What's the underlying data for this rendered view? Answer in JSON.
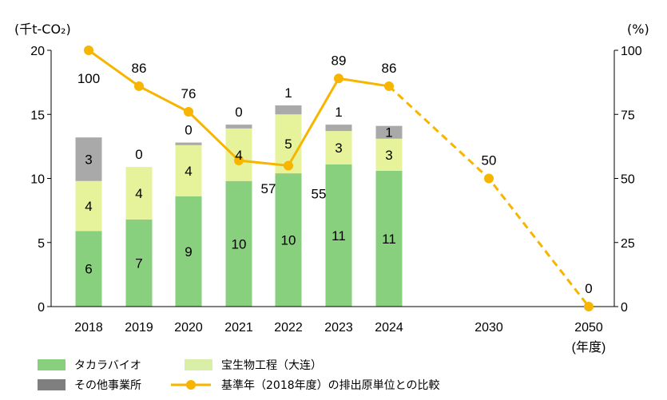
{
  "chart_data": {
    "type": "bar",
    "stacked": true,
    "categories": [
      "2018",
      "2019",
      "2020",
      "2021",
      "2022",
      "2023",
      "2024",
      "2030",
      "2050"
    ],
    "x_unit_label": "(年度)",
    "left_axis": {
      "unit_label": "(千t-CO₂)",
      "ylim": [
        0,
        20
      ],
      "ticks": [
        0,
        5,
        10,
        15,
        20
      ]
    },
    "right_axis": {
      "unit_label": "(%)",
      "ylim": [
        0,
        100
      ],
      "ticks": [
        0,
        25,
        50,
        75,
        100
      ]
    },
    "series": [
      {
        "name": "タカラバイオ",
        "color": "#88d07e",
        "axis": "left",
        "values": [
          5.9,
          6.8,
          8.6,
          9.8,
          10.4,
          11.1,
          10.6,
          null,
          null
        ],
        "labels": [
          "6",
          "7",
          "9",
          "10",
          "10",
          "11",
          "11",
          "",
          ""
        ]
      },
      {
        "name": "宝生物工程（大连）",
        "color": "#e6f39b",
        "axis": "left",
        "values": [
          3.9,
          4.1,
          4.0,
          4.1,
          4.6,
          2.6,
          2.5,
          null,
          null
        ],
        "labels": [
          "4",
          "4",
          "4",
          "4",
          "5",
          "3",
          "3",
          "",
          ""
        ]
      },
      {
        "name": "その他事業所",
        "color": "#a9a9a9",
        "axis": "left",
        "values": [
          3.4,
          0.0,
          0.2,
          0.3,
          0.7,
          0.5,
          1.0,
          null,
          null
        ],
        "labels": [
          "3",
          "0",
          "0",
          "0",
          "1",
          "1",
          "1",
          "",
          ""
        ]
      },
      {
        "name": "基準年（2018年度）の排出原単位との比較",
        "type": "line",
        "color": "#f7b500",
        "axis": "right",
        "values": [
          100,
          86,
          76,
          57,
          55,
          89,
          86,
          50,
          0
        ],
        "labels": [
          "100",
          "86",
          "76",
          "57",
          "55",
          "89",
          "86",
          "50",
          "0"
        ],
        "dashed_from_index": 6
      }
    ],
    "legend": {
      "position": "bottom",
      "items": [
        {
          "label": "タカラバイオ",
          "color": "#88d07e",
          "swatch": "bar"
        },
        {
          "label": "宝生物工程（大连）",
          "color": "#d9efa7",
          "swatch": "bar"
        },
        {
          "label": "その他事業所",
          "color": "#7f7f7f",
          "swatch": "bar"
        },
        {
          "label": "基準年（2018年度）の排出原単位との比較",
          "color": "#f7b500",
          "swatch": "line"
        }
      ]
    },
    "grid": false
  }
}
